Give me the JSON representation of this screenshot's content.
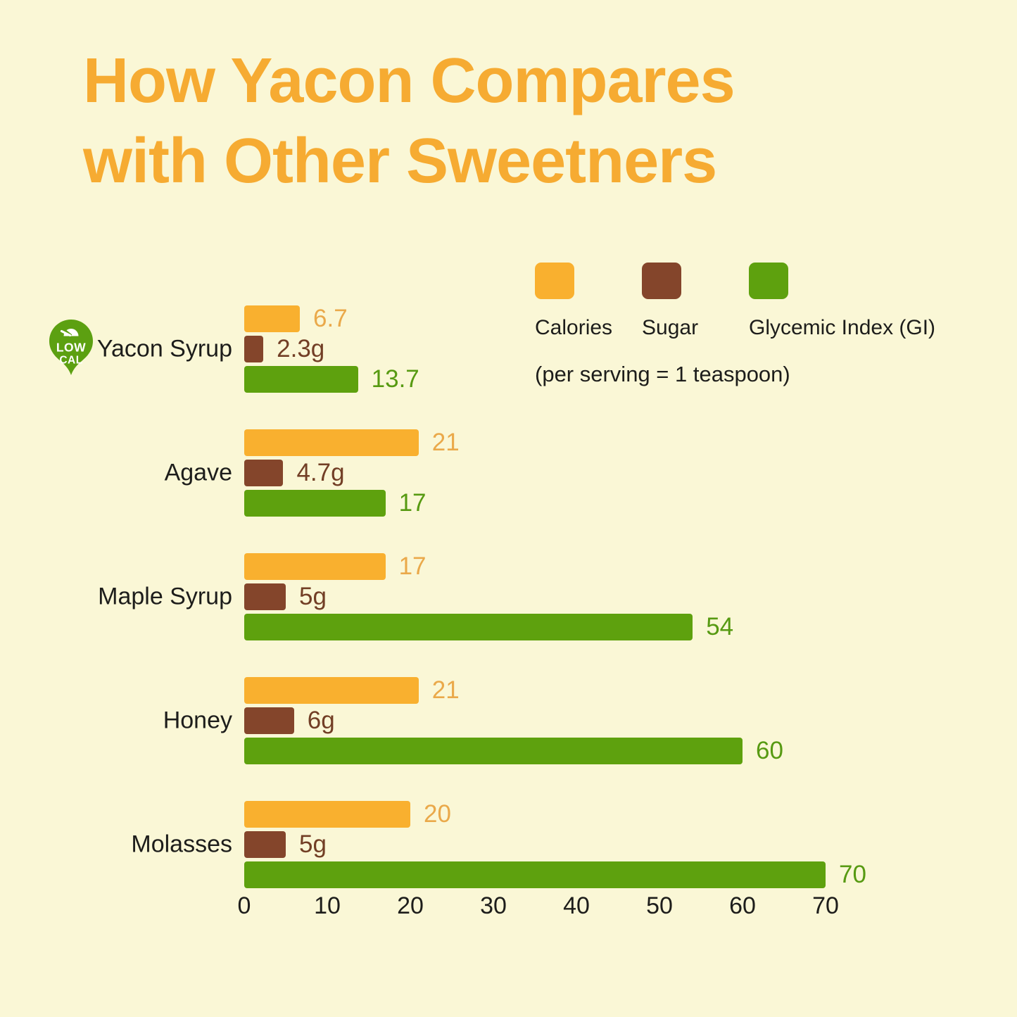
{
  "title_lines": [
    "How Yacon Compares",
    "with Other Sweetners"
  ],
  "badge": {
    "line1": "LOW",
    "line2": "CAL",
    "color": "#5CA011",
    "text_color": "#FFFFFF",
    "icon": "gauge-icon",
    "attached_to": "Yacon Syrup"
  },
  "legend": {
    "items": [
      {
        "label": "Calories",
        "color": "#F9B02F"
      },
      {
        "label": "Sugar",
        "color": "#84452B"
      },
      {
        "label": "Glycemic Index (GI)",
        "color": "#5EA10E"
      }
    ],
    "note": "(per serving = 1 teaspoon)"
  },
  "colors": {
    "background": "#FAF7D6",
    "title": "#F6AB32",
    "text": "#1D1D1B"
  },
  "chart_data": {
    "type": "bar",
    "orientation": "horizontal",
    "title": "How Yacon Compares with Other Sweetners",
    "note": "(per serving = 1 teaspoon)",
    "categories": [
      "Yacon Syrup",
      "Agave",
      "Maple Syrup",
      "Honey",
      "Molasses"
    ],
    "series": [
      {
        "name": "Calories",
        "color": "#F9B02F",
        "label_color": "#EAA94A",
        "values": [
          6.7,
          21,
          17,
          21,
          20
        ],
        "value_labels": [
          "6.7",
          "21",
          "17",
          "21",
          "20"
        ]
      },
      {
        "name": "Sugar",
        "color": "#84452B",
        "label_color": "#723E25",
        "values": [
          2.3,
          4.7,
          5,
          6,
          5
        ],
        "value_labels": [
          "2.3g",
          "4.7g",
          "5g",
          "6g",
          "5g"
        ]
      },
      {
        "name": "Glycemic Index (GI)",
        "color": "#5EA10E",
        "label_color": "#579A12",
        "values": [
          13.7,
          17,
          54,
          60,
          70
        ],
        "value_labels": [
          "13.7",
          "17",
          "54",
          "60",
          "70"
        ]
      }
    ],
    "x_ticks": [
      0,
      10,
      20,
      30,
      40,
      50,
      60,
      70
    ],
    "xlim": [
      0,
      70
    ],
    "grid": false,
    "legend_position": "top-right"
  }
}
